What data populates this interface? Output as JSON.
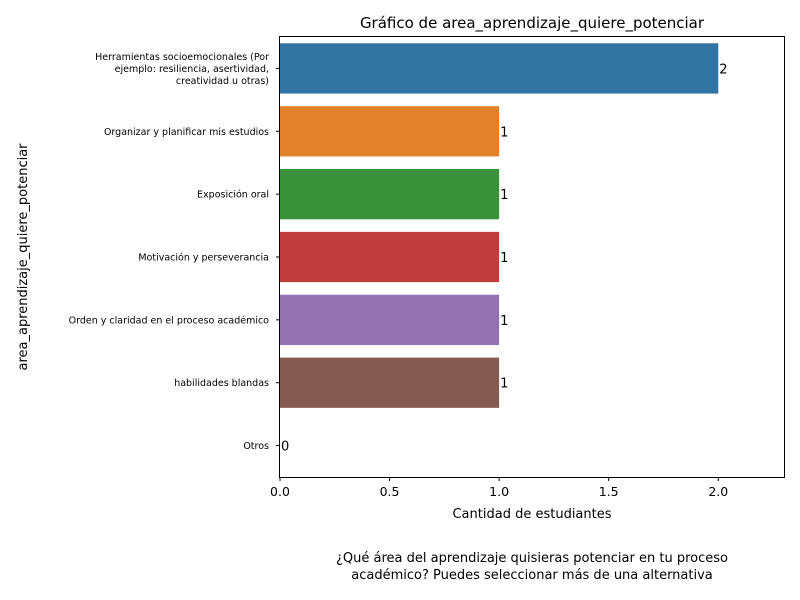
{
  "chart_data": {
    "type": "bar",
    "orientation": "horizontal",
    "title": "Gráfico de area_aprendizaje_quiere_potenciar",
    "xlabel": "Cantidad de estudiantes",
    "ylabel": "area_aprendizaje_quiere_potenciar",
    "caption_lines": [
      "¿Qué área del aprendizaje quisieras potenciar en tu proceso",
      "académico? Puedes seleccionar más de una alternativa"
    ],
    "categories": [
      [
        "Herramientas socioemocionales (Por",
        "ejemplo: resiliencia, asertividad,",
        "creatividad u otras)"
      ],
      [
        "Organizar y planificar mis estudios"
      ],
      [
        "Exposición oral"
      ],
      [
        "Motivación y perseverancia"
      ],
      [
        "Orden y claridad en el proceso académico"
      ],
      [
        "habilidades blandas"
      ],
      [
        "Otros"
      ]
    ],
    "values": [
      2,
      1,
      1,
      1,
      1,
      1,
      0
    ],
    "value_labels": [
      "2",
      "1",
      "1",
      "1",
      "1",
      "1",
      "0"
    ],
    "colors": [
      "#3274a1",
      "#e1812c",
      "#3a923a",
      "#c03d3e",
      "#9372b2",
      "#845b53",
      "#d684bd"
    ],
    "xlim": [
      0,
      2.3
    ],
    "xticks": [
      0,
      0.5,
      1,
      1.5,
      2
    ],
    "xtick_labels": [
      "0.0",
      "0.5",
      "1.0",
      "1.5",
      "2.0"
    ],
    "grid": false,
    "legend": "none"
  }
}
